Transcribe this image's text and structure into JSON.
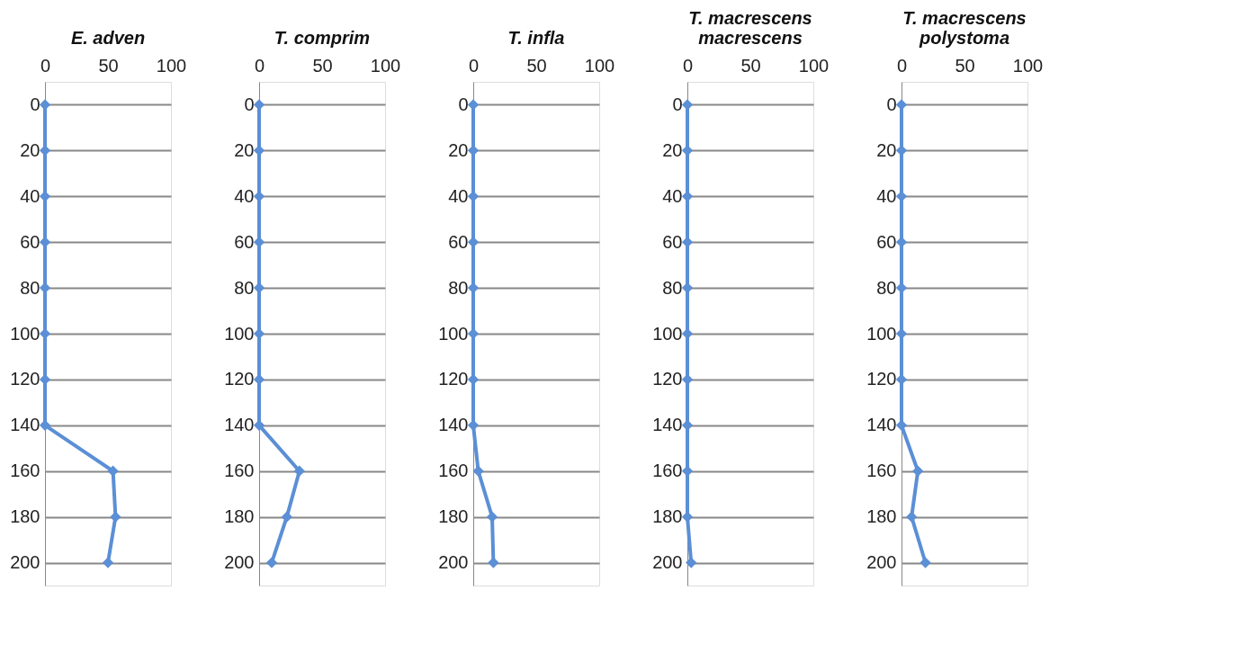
{
  "chart_data": [
    {
      "type": "line",
      "title": "E. adven",
      "orientation": "horizontal",
      "categories": [
        "0",
        "20",
        "40",
        "60",
        "80",
        "100",
        "120",
        "140",
        "160",
        "180",
        "200"
      ],
      "series": [
        {
          "color": "#5b8fd6",
          "values": [
            0,
            0,
            0,
            0,
            0,
            0,
            0,
            0,
            54,
            56,
            50
          ]
        }
      ],
      "xlim": [
        0,
        100
      ],
      "xticks": [
        0,
        50,
        100
      ],
      "grid": "y",
      "marker": "diamond",
      "legend": false
    },
    {
      "type": "line",
      "title": "T. comprim",
      "orientation": "horizontal",
      "categories": [
        "0",
        "20",
        "40",
        "60",
        "80",
        "100",
        "120",
        "140",
        "160",
        "180",
        "200"
      ],
      "series": [
        {
          "color": "#5b8fd6",
          "values": [
            0,
            0,
            0,
            0,
            0,
            0,
            0,
            0,
            32,
            22,
            10
          ]
        }
      ],
      "xlim": [
        0,
        100
      ],
      "xticks": [
        0,
        50,
        100
      ],
      "grid": "y",
      "marker": "diamond",
      "legend": false
    },
    {
      "type": "line",
      "title": "T. infla",
      "orientation": "horizontal",
      "categories": [
        "0",
        "20",
        "40",
        "60",
        "80",
        "100",
        "120",
        "140",
        "160",
        "180",
        "200"
      ],
      "series": [
        {
          "color": "#5b8fd6",
          "values": [
            0,
            0,
            0,
            0,
            0,
            0,
            0,
            0,
            4,
            15,
            16
          ]
        }
      ],
      "xlim": [
        0,
        100
      ],
      "xticks": [
        0,
        50,
        100
      ],
      "grid": "y",
      "marker": "diamond",
      "legend": false
    },
    {
      "type": "line",
      "title": "T. macrescens\nmacrescens",
      "orientation": "horizontal",
      "categories": [
        "0",
        "20",
        "40",
        "60",
        "80",
        "100",
        "120",
        "140",
        "160",
        "180",
        "200"
      ],
      "series": [
        {
          "color": "#5b8fd6",
          "values": [
            0,
            0,
            0,
            0,
            0,
            0,
            0,
            0,
            0,
            0,
            3
          ]
        }
      ],
      "xlim": [
        0,
        100
      ],
      "xticks": [
        0,
        50,
        100
      ],
      "grid": "y",
      "marker": "diamond",
      "legend": false
    },
    {
      "type": "line",
      "title": "T. macrescens\npolystoma",
      "orientation": "horizontal",
      "categories": [
        "0",
        "20",
        "40",
        "60",
        "80",
        "100",
        "120",
        "140",
        "160",
        "180",
        "200"
      ],
      "series": [
        {
          "color": "#5b8fd6",
          "values": [
            0,
            0,
            0,
            0,
            0,
            0,
            0,
            0,
            13,
            8,
            19
          ]
        }
      ],
      "xlim": [
        0,
        100
      ],
      "xticks": [
        0,
        50,
        100
      ],
      "grid": "y",
      "marker": "diamond",
      "legend": false
    }
  ]
}
